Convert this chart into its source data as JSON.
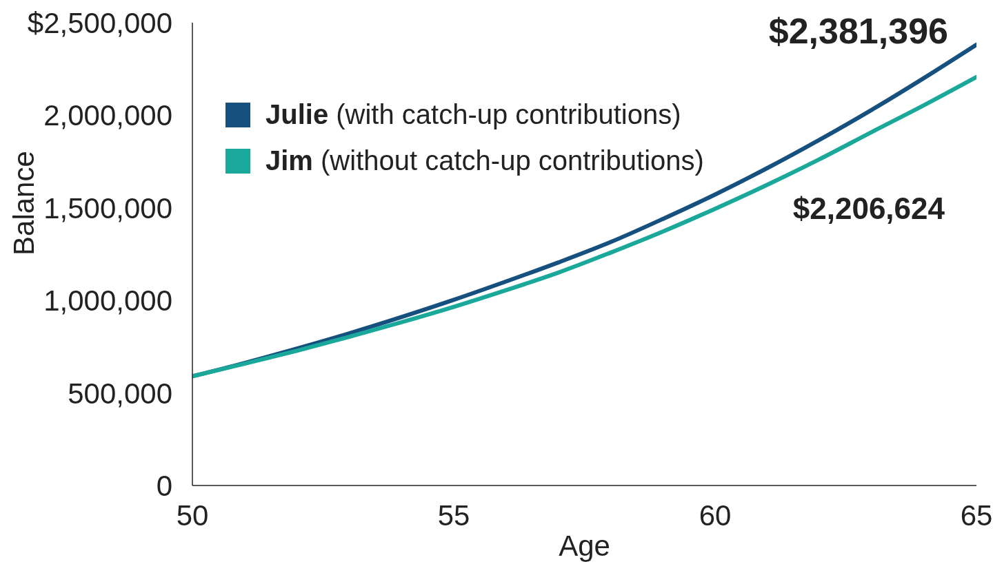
{
  "chart_data": {
    "type": "line",
    "xlabel": "Age",
    "ylabel": "Balance",
    "x": [
      50,
      51,
      52,
      53,
      54,
      55,
      56,
      57,
      58,
      59,
      60,
      61,
      62,
      63,
      64,
      65
    ],
    "series": [
      {
        "name": "Julie (with catch-up contributions)",
        "color": "#16507f",
        "values": [
          590000,
          662000,
          740000,
          822000,
          910000,
          1003000,
          1102000,
          1205000,
          1315000,
          1440000,
          1572000,
          1715000,
          1868000,
          2030000,
          2202000,
          2381396
        ],
        "value_labels": [
          null,
          null,
          null,
          null,
          null,
          null,
          null,
          null,
          null,
          null,
          null,
          null,
          null,
          null,
          null,
          "$2,381,396"
        ]
      },
      {
        "name": "Jim (without catch-up contributions)",
        "color": "#1aa89a",
        "values": [
          590000,
          658000,
          728000,
          803000,
          882000,
          965000,
          1055000,
          1150000,
          1258000,
          1372000,
          1495000,
          1625000,
          1763000,
          1910000,
          2055000,
          2206624
        ]
      }
    ],
    "annotations": [
      "$2,206,624"
    ],
    "xlim": [
      50,
      65
    ],
    "xticks": [
      50,
      55,
      60,
      65
    ],
    "ylim": [
      0,
      2500000
    ],
    "yticks": [
      0,
      {
        "value": 500000,
        "label": "500,000"
      },
      {
        "value": 1000000,
        "label": "1,000,000"
      },
      {
        "value": 1500000,
        "label": "1,500,000"
      },
      {
        "value": 2000000,
        "label": "2,000,000"
      },
      {
        "value": 2500000,
        "label": "$2,500,000"
      }
    ],
    "legend": "top left"
  }
}
